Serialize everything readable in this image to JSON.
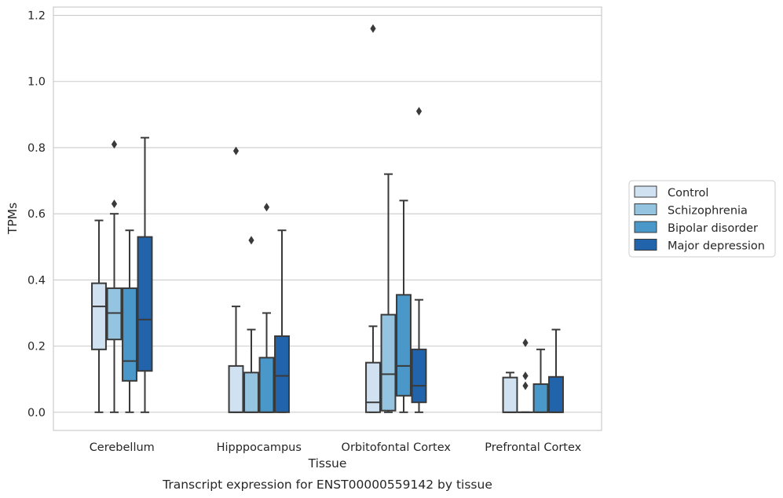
{
  "caption": "Transcript expression for ENST00000559142 by tissue",
  "chart_data": {
    "type": "box",
    "title": "",
    "xlabel": "Tissue",
    "ylabel": "TPMs",
    "ylim": [
      -0.055,
      1.225
    ],
    "yticks": [
      0.0,
      0.2,
      0.4,
      0.6,
      0.8,
      1.0,
      1.2
    ],
    "ytick_labels": [
      "0.0",
      "0.2",
      "0.4",
      "0.6",
      "0.8",
      "1.0",
      "1.2"
    ],
    "grid": "horizontal",
    "legend_position": "right-outside",
    "categories": [
      "Cerebellum",
      "Hipppocampus",
      "Orbitofontal Cortex",
      "Prefrontal Cortex"
    ],
    "series": [
      {
        "name": "Control",
        "color": "#d0e1f2",
        "boxes": [
          {
            "whislo": 0.0,
            "q1": 0.19,
            "median": 0.32,
            "q3": 0.39,
            "whishi": 0.58,
            "fliers": []
          },
          {
            "whislo": 0.0,
            "q1": 0.0,
            "median": 0.0,
            "q3": 0.14,
            "whishi": 0.32,
            "fliers": [
              0.79
            ]
          },
          {
            "whislo": 0.0,
            "q1": 0.0,
            "median": 0.03,
            "q3": 0.15,
            "whishi": 0.26,
            "fliers": [
              1.16
            ]
          },
          {
            "whislo": 0.0,
            "q1": 0.0,
            "median": 0.0,
            "q3": 0.105,
            "whishi": 0.12,
            "fliers": []
          }
        ]
      },
      {
        "name": "Schizophrenia",
        "color": "#94c4df",
        "boxes": [
          {
            "whislo": 0.0,
            "q1": 0.22,
            "median": 0.3,
            "q3": 0.375,
            "whishi": 0.6,
            "fliers": [
              0.63,
              0.81
            ]
          },
          {
            "whislo": 0.0,
            "q1": 0.0,
            "median": 0.0,
            "q3": 0.12,
            "whishi": 0.25,
            "fliers": [
              0.52
            ]
          },
          {
            "whislo": 0.0,
            "q1": 0.005,
            "median": 0.115,
            "q3": 0.295,
            "whishi": 0.72,
            "fliers": []
          },
          {
            "whislo": 0.0,
            "q1": 0.0,
            "median": 0.0,
            "q3": 0.0,
            "whishi": 0.0,
            "fliers": [
              0.08,
              0.11,
              0.21
            ]
          }
        ]
      },
      {
        "name": "Bipolar disorder",
        "color": "#4a98c9",
        "boxes": [
          {
            "whislo": 0.0,
            "q1": 0.095,
            "median": 0.155,
            "q3": 0.375,
            "whishi": 0.55,
            "fliers": []
          },
          {
            "whislo": 0.0,
            "q1": 0.0,
            "median": 0.0,
            "q3": 0.165,
            "whishi": 0.3,
            "fliers": [
              0.62
            ]
          },
          {
            "whislo": 0.0,
            "q1": 0.05,
            "median": 0.14,
            "q3": 0.355,
            "whishi": 0.64,
            "fliers": []
          },
          {
            "whislo": 0.0,
            "q1": 0.0,
            "median": 0.0,
            "q3": 0.085,
            "whishi": 0.19,
            "fliers": []
          }
        ]
      },
      {
        "name": "Major depression",
        "color": "#2164ab",
        "boxes": [
          {
            "whislo": 0.0,
            "q1": 0.125,
            "median": 0.28,
            "q3": 0.53,
            "whishi": 0.83,
            "fliers": []
          },
          {
            "whislo": 0.0,
            "q1": 0.0,
            "median": 0.11,
            "q3": 0.23,
            "whishi": 0.55,
            "fliers": []
          },
          {
            "whislo": 0.0,
            "q1": 0.03,
            "median": 0.08,
            "q3": 0.19,
            "whishi": 0.34,
            "fliers": [
              0.91
            ]
          },
          {
            "whislo": 0.0,
            "q1": 0.0,
            "median": 0.0,
            "q3": 0.107,
            "whishi": 0.25,
            "fliers": []
          }
        ]
      }
    ]
  }
}
